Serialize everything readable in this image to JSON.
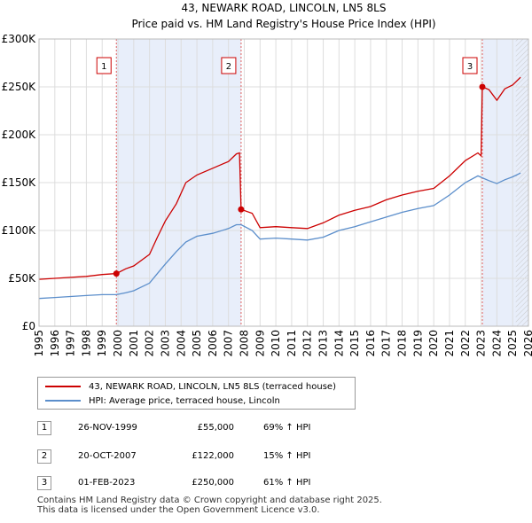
{
  "chart_data": {
    "type": "line",
    "title": "43, NEWARK ROAD, LINCOLN, LN5 8LS",
    "subtitle": "Price paid vs. HM Land Registry's House Price Index (HPI)",
    "xlabel": "",
    "ylabel": "",
    "xlim": [
      1995,
      2026
    ],
    "ylim": [
      0,
      300000
    ],
    "x_ticks": [
      "1995",
      "1996",
      "1997",
      "1998",
      "1999",
      "2000",
      "2001",
      "2002",
      "2003",
      "2004",
      "2005",
      "2006",
      "2007",
      "2008",
      "2009",
      "2010",
      "2011",
      "2012",
      "2013",
      "2014",
      "2015",
      "2016",
      "2017",
      "2018",
      "2019",
      "2020",
      "2021",
      "2022",
      "2023",
      "2024",
      "2025",
      "2026"
    ],
    "y_ticks": [
      {
        "value": 0,
        "label": "£0"
      },
      {
        "value": 50000,
        "label": "£50K"
      },
      {
        "value": 100000,
        "label": "£100K"
      },
      {
        "value": 150000,
        "label": "£150K"
      },
      {
        "value": 200000,
        "label": "£200K"
      },
      {
        "value": 250000,
        "label": "£250K"
      },
      {
        "value": 300000,
        "label": "£300K"
      }
    ],
    "grid": true,
    "shaded_ranges": [
      [
        1999.9,
        2007.8
      ],
      [
        2023.08,
        2026
      ]
    ],
    "hatched_from": 2025.2,
    "series": [
      {
        "name": "43, NEWARK ROAD, LINCOLN, LN5 8LS (terraced house)",
        "color": "#cc0000",
        "x": [
          1995,
          1996,
          1997,
          1998,
          1999,
          1999.9,
          2000.5,
          2001,
          2002,
          2002.5,
          2003,
          2003.7,
          2004.3,
          2005,
          2006,
          2007,
          2007.5,
          2007.7,
          2007.8,
          2008.5,
          2009,
          2010,
          2011,
          2012,
          2013,
          2014,
          2015,
          2016,
          2017,
          2018,
          2019,
          2020,
          2021,
          2022,
          2022.8,
          2023.0,
          2023.08,
          2023.5,
          2024,
          2024.5,
          2025,
          2025.5
        ],
        "y": [
          49000,
          50000,
          51000,
          52000,
          54000,
          55000,
          60000,
          63000,
          75000,
          93000,
          110000,
          128000,
          150000,
          158000,
          165000,
          172000,
          180000,
          181000,
          122000,
          118000,
          103000,
          104000,
          103000,
          102000,
          108000,
          116000,
          121000,
          125000,
          132000,
          137000,
          141000,
          144000,
          157000,
          173000,
          181000,
          178000,
          250000,
          247000,
          236000,
          248000,
          252000,
          260000
        ]
      },
      {
        "name": "HPI: Average price, terraced house, Lincoln",
        "color": "#5b8ecb",
        "x": [
          1995,
          1996,
          1997,
          1998,
          1999,
          1999.9,
          2000.5,
          2001,
          2002,
          2002.5,
          2003,
          2003.7,
          2004.3,
          2005,
          2006,
          2007,
          2007.5,
          2007.8,
          2008.5,
          2009,
          2010,
          2011,
          2012,
          2013,
          2014,
          2015,
          2016,
          2017,
          2018,
          2019,
          2020,
          2021,
          2022,
          2022.8,
          2023.08,
          2023.5,
          2024,
          2024.5,
          2025,
          2025.5
        ],
        "y": [
          29000,
          30000,
          31000,
          32000,
          33000,
          33000,
          35000,
          37000,
          45000,
          55000,
          65000,
          78000,
          88000,
          94000,
          97000,
          102000,
          106000,
          106000,
          100000,
          91000,
          92000,
          91000,
          90000,
          93000,
          100000,
          104000,
          109000,
          114000,
          119000,
          123000,
          126000,
          137000,
          150000,
          157000,
          155000,
          152000,
          149000,
          153000,
          156000,
          160000
        ]
      }
    ],
    "markers": [
      {
        "label": "1",
        "x": 1999.9,
        "y": 55000
      },
      {
        "label": "2",
        "x": 2007.8,
        "y": 122000
      },
      {
        "label": "3",
        "x": 2023.08,
        "y": 250000
      }
    ]
  },
  "legend": {
    "property_label": "43, NEWARK ROAD, LINCOLN, LN5 8LS (terraced house)",
    "hpi_label": "HPI: Average price, terraced house, Lincoln",
    "property_color": "#cc0000",
    "hpi_color": "#5b8ecb"
  },
  "transactions": [
    {
      "num": "1",
      "date": "26-NOV-1999",
      "price": "£55,000",
      "hpi": "69% ↑ HPI"
    },
    {
      "num": "2",
      "date": "20-OCT-2007",
      "price": "£122,000",
      "hpi": "15% ↑ HPI"
    },
    {
      "num": "3",
      "date": "01-FEB-2023",
      "price": "£250,000",
      "hpi": "61% ↑ HPI"
    }
  ],
  "footer": {
    "line1": "Contains HM Land Registry data © Crown copyright and database right 2025.",
    "line2": "This data is licensed under the Open Government Licence v3.0."
  }
}
